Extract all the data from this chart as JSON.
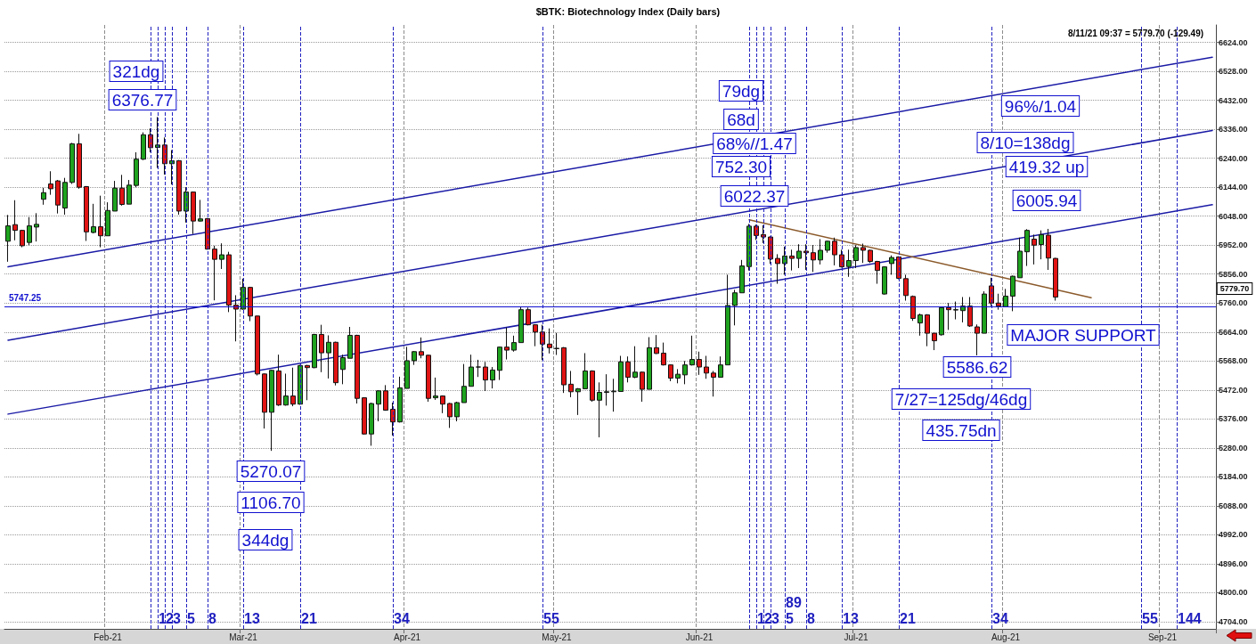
{
  "chart_data": {
    "type": "candlestick",
    "title": "$BTK: Biotechnology Index (Daily bars)",
    "categories": [
      null,
      null,
      null,
      null,
      null,
      null,
      null,
      null,
      null,
      null,
      null,
      null,
      null,
      null,
      "Feb-21",
      null,
      null,
      null,
      null,
      null,
      null,
      null,
      null,
      null,
      null,
      null,
      null,
      null,
      null,
      null,
      null,
      null,
      null,
      "Mar-21",
      null,
      null,
      null,
      null,
      null,
      null,
      null,
      null,
      null,
      null,
      null,
      null,
      null,
      null,
      null,
      null,
      null,
      null,
      null,
      null,
      null,
      null,
      "Apr-21",
      null,
      null,
      null,
      null,
      null,
      null,
      null,
      null,
      null,
      null,
      null,
      null,
      null,
      null,
      null,
      null,
      null,
      null,
      null,
      null,
      "May-21",
      null,
      null,
      null,
      null,
      null,
      null,
      null,
      null,
      null,
      null,
      null,
      null,
      null,
      null,
      null,
      null,
      null,
      null,
      null,
      "Jun-21",
      null,
      null,
      null,
      null,
      null,
      null,
      null,
      null,
      null,
      null,
      null,
      null,
      null,
      null,
      null,
      null,
      null,
      null,
      null,
      null,
      null,
      "Jul-21",
      null,
      null,
      null,
      null,
      null,
      null,
      null,
      null,
      null,
      null,
      null,
      null,
      null,
      null,
      null,
      null,
      null,
      null,
      null,
      null,
      "Aug-21",
      null,
      null,
      null,
      null,
      null,
      null,
      null,
      null,
      null,
      null,
      null,
      null,
      null,
      null,
      null,
      null,
      null,
      null,
      null,
      null,
      null,
      "Sep-21",
      null,
      null,
      null,
      null,
      null,
      null,
      null
    ],
    "ohlc": [
      [
        5965,
        6052,
        5897,
        6016
      ],
      [
        6020,
        6101,
        5968,
        6001
      ],
      [
        6001,
        6003,
        5945,
        5950
      ],
      [
        5961,
        6045,
        5952,
        6016
      ],
      [
        6012,
        6058,
        5964,
        6021
      ],
      [
        6104,
        6142,
        6086,
        6126
      ],
      [
        6155,
        6197,
        6119,
        6139
      ],
      [
        6165,
        6168,
        6057,
        6085
      ],
      [
        6075,
        6175,
        6053,
        6160
      ],
      [
        6160,
        6291,
        6155,
        6288
      ],
      [
        6288,
        6321,
        6139,
        6144
      ],
      [
        6146,
        6148,
        5966,
        5996
      ],
      [
        5994,
        6089,
        5991,
        6013
      ],
      [
        6013,
        6116,
        5945,
        5983
      ],
      [
        5983,
        6094,
        5983,
        6067
      ],
      [
        6065,
        6165,
        6065,
        6141
      ],
      [
        6141,
        6185,
        6083,
        6087
      ],
      [
        6088,
        6168,
        6088,
        6151
      ],
      [
        6150,
        6260,
        6144,
        6237
      ],
      [
        6237,
        6326,
        6234,
        6318
      ],
      [
        6318,
        6339,
        6260,
        6275
      ],
      [
        6276,
        6376.77,
        6208,
        6284
      ],
      [
        6284,
        6309,
        6186,
        6222
      ],
      [
        6222,
        6267,
        6153,
        6232
      ],
      [
        6232,
        6234,
        6053,
        6065
      ],
      [
        6065,
        6144,
        6027,
        6128
      ],
      [
        6128,
        6130,
        5989,
        6032
      ],
      [
        6032,
        6102,
        6030,
        6039
      ],
      [
        6040,
        6042,
        5937,
        5939
      ],
      [
        5939,
        5950,
        5769,
        5905
      ],
      [
        5905,
        5958,
        5873,
        5920
      ],
      [
        5920,
        5930,
        5730,
        5753
      ],
      [
        5753,
        5786,
        5633,
        5740
      ],
      [
        5740,
        5841,
        5738,
        5812
      ],
      [
        5812,
        5814,
        5700,
        5717
      ],
      [
        5717,
        5718,
        5520,
        5525
      ],
      [
        5525,
        5527,
        5344,
        5398
      ],
      [
        5398,
        5539,
        5270.07,
        5537
      ],
      [
        5535,
        5589,
        5419,
        5422
      ],
      [
        5422,
        5526,
        5420,
        5452
      ],
      [
        5452,
        5546,
        5418,
        5425
      ],
      [
        5425,
        5555,
        5423,
        5553
      ],
      [
        5553,
        5555,
        5438,
        5546
      ],
      [
        5546,
        5658,
        5544,
        5656
      ],
      [
        5656,
        5688,
        5531,
        5595
      ],
      [
        5595,
        5653,
        5510,
        5630
      ],
      [
        5630,
        5632,
        5487,
        5496
      ],
      [
        5540,
        5589,
        5491,
        5579
      ],
      [
        5577,
        5681,
        5577,
        5653
      ],
      [
        5653,
        5655,
        5427,
        5444
      ],
      [
        5446,
        5448,
        5324,
        5326
      ],
      [
        5326,
        5430,
        5287,
        5427
      ],
      [
        5425,
        5471,
        5368,
        5469
      ],
      [
        5469,
        5488,
        5403,
        5405
      ],
      [
        5408,
        5430,
        5321,
        5366
      ],
      [
        5366,
        5516,
        5364,
        5479
      ],
      [
        5477,
        5615,
        5477,
        5569
      ],
      [
        5569,
        5601,
        5555,
        5599
      ],
      [
        5599,
        5646,
        5577,
        5587
      ],
      [
        5587,
        5589,
        5433,
        5444
      ],
      [
        5446,
        5513,
        5439,
        5452
      ],
      [
        5452,
        5454,
        5395,
        5425
      ],
      [
        5427,
        5429,
        5346,
        5383
      ],
      [
        5383,
        5433,
        5368,
        5430
      ],
      [
        5430,
        5558,
        5430,
        5484
      ],
      [
        5484,
        5589,
        5484,
        5548
      ],
      [
        5548,
        5572,
        5515,
        5548
      ],
      [
        5548,
        5565,
        5469,
        5505
      ],
      [
        5505,
        5548,
        5477,
        5538
      ],
      [
        5537,
        5616,
        5505,
        5614
      ],
      [
        5614,
        5679,
        5573,
        5604
      ],
      [
        5604,
        5652,
        5599,
        5629
      ],
      [
        5629,
        5747.25,
        5629,
        5738
      ],
      [
        5738,
        5745,
        5686,
        5688
      ],
      [
        5688,
        5690,
        5617,
        5664
      ],
      [
        5664,
        5688,
        5571,
        5624
      ],
      [
        5624,
        5676,
        5593,
        5612
      ],
      [
        5610,
        5661,
        5588,
        5609
      ],
      [
        5612,
        5614,
        5462,
        5489
      ],
      [
        5491,
        5535,
        5448,
        5466
      ],
      [
        5466,
        5478,
        5389,
        5476
      ],
      [
        5476,
        5594,
        5476,
        5535
      ],
      [
        5535,
        5537,
        5433,
        5438
      ],
      [
        5438,
        5497,
        5315,
        5464
      ],
      [
        5464,
        5524,
        5420,
        5466
      ],
      [
        5466,
        5509,
        5400,
        5468
      ],
      [
        5467,
        5585,
        5467,
        5565
      ],
      [
        5565,
        5583,
        5497,
        5514
      ],
      [
        5514,
        5617,
        5511,
        5531
      ],
      [
        5531,
        5533,
        5433,
        5474
      ],
      [
        5474,
        5647,
        5474,
        5612
      ],
      [
        5612,
        5654,
        5591,
        5593
      ],
      [
        5594,
        5629,
        5553,
        5555
      ],
      [
        5555,
        5557,
        5501,
        5511
      ],
      [
        5511,
        5541,
        5494,
        5524
      ],
      [
        5522,
        5568,
        5491,
        5555
      ],
      [
        5555,
        5652,
        5553,
        5573
      ],
      [
        5573,
        5599,
        5522,
        5548
      ],
      [
        5548,
        5585,
        5509,
        5528
      ],
      [
        5528,
        5535,
        5450,
        5514
      ],
      [
        5514,
        5583,
        5514,
        5555
      ],
      [
        5555,
        5854,
        5555,
        5752
      ],
      [
        5752,
        5804,
        5686,
        5794
      ],
      [
        5794,
        5903,
        5794,
        5883
      ],
      [
        5881,
        6022.37,
        5868,
        6015
      ],
      [
        6015,
        6020,
        5969,
        5984
      ],
      [
        5987,
        6018,
        5959,
        5979
      ],
      [
        5979,
        5981,
        5890,
        5906
      ],
      [
        5908,
        5922,
        5824,
        5891
      ],
      [
        5891,
        5947,
        5854,
        5916
      ],
      [
        5916,
        5937,
        5868,
        5908
      ],
      [
        5908,
        5955,
        5876,
        5932
      ],
      [
        5932,
        5955,
        5870,
        5927
      ],
      [
        5927,
        5952,
        5863,
        5903
      ],
      [
        5903,
        5972,
        5888,
        5935
      ],
      [
        5935,
        5967,
        5927,
        5965
      ],
      [
        5965,
        5977,
        5885,
        5920
      ],
      [
        5920,
        5937,
        5878,
        5880
      ],
      [
        5881,
        5937,
        5847,
        5901
      ],
      [
        5901,
        5952,
        5876,
        5944
      ],
      [
        5944,
        5957,
        5893,
        5935
      ],
      [
        5935,
        5937,
        5893,
        5898
      ],
      [
        5898,
        5900,
        5824,
        5868
      ],
      [
        5790,
        5882,
        5788,
        5880
      ],
      [
        5891,
        5918,
        5854,
        5911
      ],
      [
        5913,
        5915,
        5839,
        5842
      ],
      [
        5841,
        5854,
        5768,
        5785
      ],
      [
        5782,
        5785,
        5701,
        5709
      ],
      [
        5694,
        5725,
        5652,
        5721
      ],
      [
        5721,
        5723,
        5617,
        5660
      ],
      [
        5660,
        5661,
        5604,
        5635
      ],
      [
        5655,
        5748,
        5652,
        5745
      ],
      [
        5745,
        5760,
        5671,
        5738
      ],
      [
        5737,
        5765,
        5706,
        5738
      ],
      [
        5735,
        5780,
        5696,
        5750
      ],
      [
        5750,
        5780,
        5681,
        5684
      ],
      [
        5681,
        5689,
        5586.62,
        5660
      ],
      [
        5660,
        5799,
        5660,
        5790
      ],
      [
        5817,
        5844,
        5750,
        5760
      ],
      [
        5760,
        5791,
        5738,
        5750
      ],
      [
        5748,
        5807,
        5748,
        5783
      ],
      [
        5783,
        5851,
        5733,
        5849
      ],
      [
        5844,
        5977,
        5844,
        5932
      ],
      [
        5930,
        6005,
        5883,
        6001
      ],
      [
        5972,
        5987,
        5888,
        5952
      ],
      [
        5954,
        6001,
        5905,
        5987
      ],
      [
        5985,
        6005.94,
        5870,
        5909.19
      ],
      [
        5908,
        5910,
        5768,
        5779.7
      ],
      null,
      null,
      null,
      null,
      null,
      null,
      null,
      null,
      null,
      null,
      null,
      null,
      null,
      null,
      null,
      null,
      null,
      null,
      null,
      null,
      null,
      null
    ],
    "series": [
      {
        "type": "line",
        "color": "#1a1aa6",
        "values": [
          5880,
          null,
          null,
          null,
          null,
          null,
          null,
          null,
          null,
          null,
          null,
          null,
          null,
          null,
          null,
          null,
          null,
          null,
          null,
          null,
          null,
          null,
          null,
          null,
          null,
          null,
          null,
          null,
          null,
          null,
          null,
          null,
          null,
          null,
          null,
          null,
          null,
          null,
          null,
          null,
          null,
          null,
          null,
          null,
          null,
          null,
          null,
          null,
          null,
          null,
          null,
          null,
          null,
          null,
          null,
          null,
          null,
          null,
          null,
          null,
          null,
          null,
          null,
          null,
          null,
          null,
          null,
          null,
          null,
          null,
          null,
          null,
          null,
          null,
          null,
          null,
          null,
          null,
          null,
          null,
          null,
          null,
          null,
          null,
          null,
          null,
          null,
          null,
          null,
          null,
          null,
          null,
          null,
          null,
          null,
          null,
          null,
          null,
          null,
          null,
          null,
          null,
          null,
          null,
          null,
          null,
          null,
          null,
          null,
          null,
          null,
          null,
          null,
          null,
          null,
          null,
          null,
          null,
          null,
          null,
          null,
          null,
          null,
          null,
          null,
          null,
          null,
          null,
          null,
          null,
          null,
          null,
          null,
          null,
          null,
          null,
          null,
          null,
          null,
          null,
          null,
          null,
          null,
          null,
          null,
          null,
          null,
          null,
          null,
          null,
          null,
          null,
          null,
          null,
          null,
          null,
          null,
          null,
          null,
          null,
          null,
          null,
          null,
          null,
          null,
          null,
          null,
          null,
          null,
          6575
        ]
      },
      {
        "type": "line",
        "color": "#1a1aa6",
        "values": [
          5637,
          null,
          null,
          null,
          null,
          null,
          null,
          null,
          null,
          null,
          null,
          null,
          null,
          null,
          null,
          null,
          null,
          null,
          null,
          null,
          null,
          null,
          null,
          null,
          null,
          null,
          null,
          null,
          null,
          null,
          null,
          null,
          null,
          null,
          null,
          null,
          null,
          null,
          null,
          null,
          null,
          null,
          null,
          null,
          null,
          null,
          null,
          null,
          null,
          null,
          null,
          null,
          null,
          null,
          null,
          null,
          null,
          null,
          null,
          null,
          null,
          null,
          null,
          null,
          null,
          null,
          null,
          null,
          null,
          null,
          null,
          null,
          null,
          null,
          null,
          null,
          null,
          null,
          null,
          null,
          null,
          null,
          null,
          null,
          null,
          null,
          null,
          null,
          null,
          null,
          null,
          null,
          null,
          null,
          null,
          null,
          null,
          null,
          null,
          null,
          null,
          null,
          null,
          null,
          null,
          null,
          null,
          null,
          null,
          null,
          null,
          null,
          null,
          null,
          null,
          null,
          null,
          null,
          null,
          null,
          null,
          null,
          null,
          null,
          null,
          null,
          null,
          null,
          null,
          null,
          null,
          null,
          null,
          null,
          null,
          null,
          null,
          null,
          null,
          null,
          null,
          null,
          null,
          null,
          null,
          null,
          null,
          null,
          null,
          null,
          null,
          null,
          null,
          null,
          null,
          null,
          null,
          null,
          null,
          null,
          null,
          null,
          null,
          null,
          null,
          null,
          null,
          null,
          null,
          6332
        ]
      },
      {
        "type": "line",
        "color": "#1a1aa6",
        "values": [
          5392,
          null,
          null,
          null,
          null,
          null,
          null,
          null,
          null,
          null,
          null,
          null,
          null,
          null,
          null,
          null,
          null,
          null,
          null,
          null,
          null,
          null,
          null,
          null,
          null,
          null,
          null,
          null,
          null,
          null,
          null,
          null,
          null,
          null,
          null,
          null,
          null,
          null,
          null,
          null,
          null,
          null,
          null,
          null,
          null,
          null,
          null,
          null,
          null,
          null,
          null,
          null,
          null,
          null,
          null,
          null,
          null,
          null,
          null,
          null,
          null,
          null,
          null,
          null,
          null,
          null,
          null,
          null,
          null,
          null,
          null,
          null,
          null,
          null,
          null,
          null,
          null,
          null,
          null,
          null,
          null,
          null,
          null,
          null,
          null,
          null,
          null,
          null,
          null,
          null,
          null,
          null,
          null,
          null,
          null,
          null,
          null,
          null,
          null,
          null,
          null,
          null,
          null,
          null,
          null,
          null,
          null,
          null,
          null,
          null,
          null,
          null,
          null,
          null,
          null,
          null,
          null,
          null,
          null,
          null,
          null,
          null,
          null,
          null,
          null,
          null,
          null,
          null,
          null,
          null,
          null,
          null,
          null,
          null,
          null,
          null,
          null,
          null,
          null,
          null,
          null,
          null,
          null,
          null,
          null,
          null,
          null,
          null,
          null,
          null,
          null,
          null,
          null,
          null,
          null,
          null,
          null,
          null,
          null,
          null,
          null,
          null,
          null,
          null,
          null,
          null,
          null,
          null,
          null,
          6086
        ]
      },
      {
        "type": "line",
        "color": "#8b5a2b",
        "values": [
          null,
          null,
          null,
          null,
          null,
          null,
          null,
          null,
          null,
          null,
          null,
          null,
          null,
          null,
          null,
          null,
          null,
          null,
          null,
          null,
          null,
          null,
          null,
          null,
          null,
          null,
          null,
          null,
          null,
          null,
          null,
          null,
          null,
          null,
          null,
          null,
          null,
          null,
          null,
          null,
          null,
          null,
          null,
          null,
          null,
          null,
          null,
          null,
          null,
          null,
          null,
          null,
          null,
          null,
          null,
          null,
          null,
          null,
          null,
          null,
          null,
          null,
          null,
          null,
          null,
          null,
          null,
          null,
          null,
          null,
          null,
          null,
          null,
          null,
          null,
          null,
          null,
          null,
          null,
          null,
          null,
          null,
          null,
          null,
          null,
          null,
          null,
          null,
          null,
          null,
          null,
          null,
          null,
          null,
          null,
          null,
          null,
          null,
          null,
          null,
          null,
          null,
          null,
          null,
          6036,
          null,
          null,
          null,
          null,
          null,
          null,
          null,
          null,
          null,
          null,
          null,
          null,
          null,
          null,
          null,
          null,
          null,
          null,
          null,
          null,
          null,
          null,
          null,
          null,
          null,
          null,
          null,
          null,
          null,
          null,
          null,
          null,
          null,
          null,
          null,
          null,
          null,
          null,
          null,
          null,
          null,
          null,
          null,
          null,
          null,
          null,
          null,
          5778,
          null,
          null,
          null,
          null,
          null,
          null,
          null,
          null,
          null,
          null,
          null,
          null,
          null,
          null,
          null,
          null,
          null
        ]
      }
    ],
    "ylim": [
      4680,
      6682
    ],
    "yticks": [
      {
        "value": 4704,
        "label": "4704.00"
      },
      {
        "value": 4800,
        "label": "4800.00"
      },
      {
        "value": 4896,
        "label": "4896.00"
      },
      {
        "value": 4992,
        "label": "4992.00"
      },
      {
        "value": 5088,
        "label": "5088.00"
      },
      {
        "value": 5184,
        "label": "5184.00"
      },
      {
        "value": 5280,
        "label": "5280.00"
      },
      {
        "value": 5376,
        "label": "5376.00"
      },
      {
        "value": 5472,
        "label": "5472.00"
      },
      {
        "value": 5568,
        "label": "5568.00"
      },
      {
        "value": 5664,
        "label": "5664.00"
      },
      {
        "value": 5760,
        "label": "5760.00"
      },
      {
        "value": 5856,
        "label": "5856.00"
      },
      {
        "value": 5952,
        "label": "5952.00"
      },
      {
        "value": 6048,
        "label": "6048.00"
      },
      {
        "value": 6144,
        "label": "6144.00"
      },
      {
        "value": 6240,
        "label": "6240.00"
      },
      {
        "value": 6336,
        "label": "6336.00"
      },
      {
        "value": 6432,
        "label": "6432.00"
      },
      {
        "value": 6528,
        "label": "6528.00"
      },
      {
        "value": 6624,
        "label": "6624.00"
      }
    ],
    "grid": true,
    "ref_lines": [
      {
        "axis": "y",
        "value": 5747.25,
        "label": "5747.25",
        "color": "#1010d0"
      }
    ],
    "annotations": [
      "8/11/21 09:37 = 5779.70 (-129.49)",
      "321dg",
      "6376.77",
      "79dg",
      "68d",
      "68%//1.47",
      "752.30",
      "6022.37",
      "96%/1.04",
      "8/10=138dg",
      "419.32 up",
      "6005.94",
      "MAJOR SUPPORT",
      "5586.62",
      "7/27=125dg/46dg",
      "435.75dn",
      "5270.07",
      "1106.70",
      "344dg",
      "5779.70",
      "1",
      "2",
      "3",
      "5",
      "8",
      "13",
      "21",
      "34",
      "55",
      "89",
      "144",
      "1",
      "2",
      "3",
      "5",
      "8",
      "13",
      "21",
      "34",
      "55"
    ]
  }
}
